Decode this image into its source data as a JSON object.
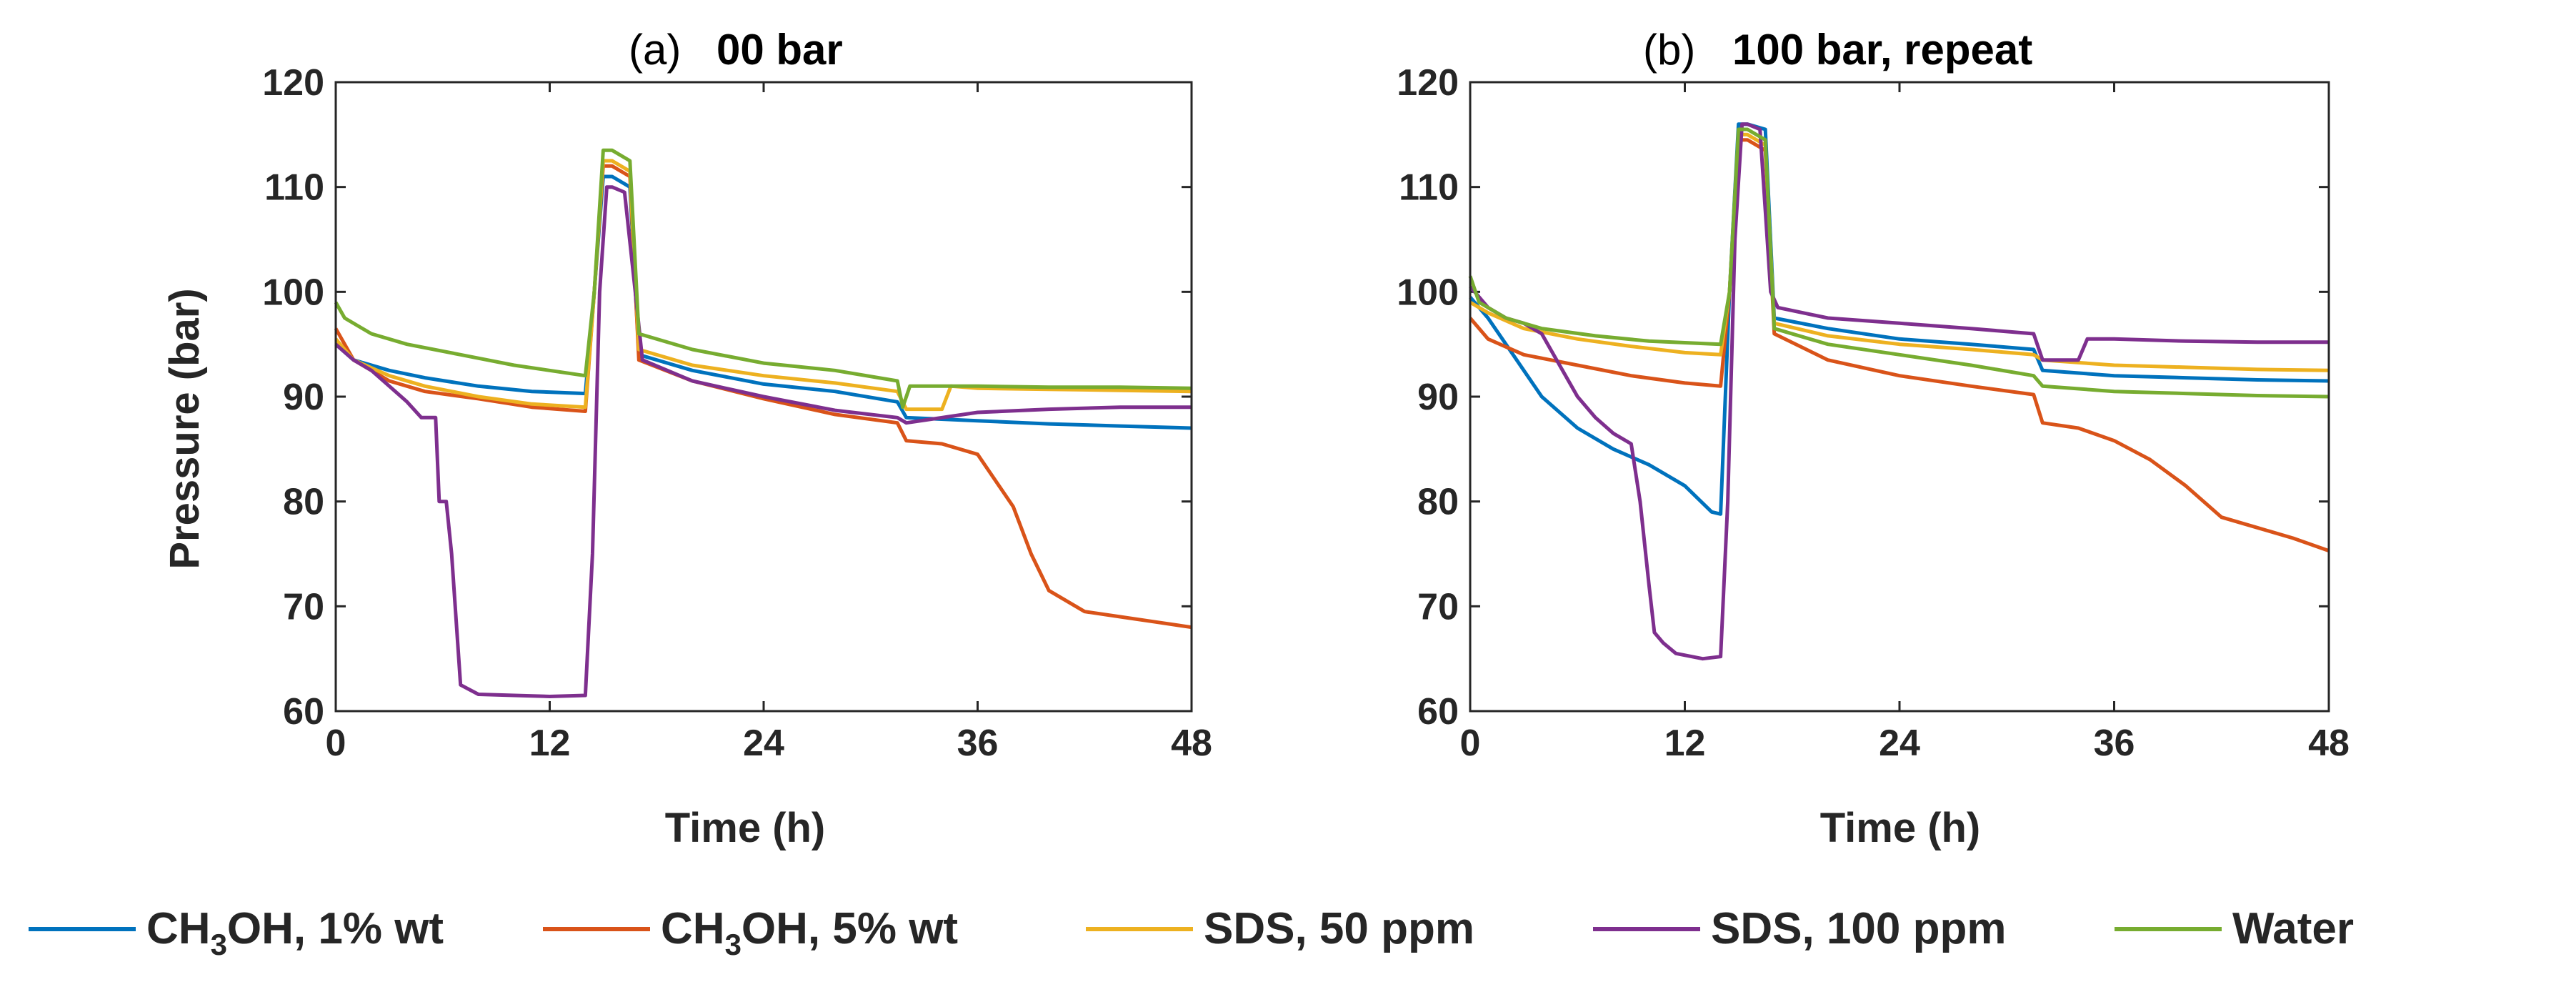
{
  "chart_data": [
    {
      "type": "line",
      "panel_label": "(a)",
      "title": "00 bar",
      "xlabel": "Time (h)",
      "ylabel": "Pressure (bar)",
      "xlim": [
        0,
        48
      ],
      "ylim": [
        60,
        120
      ],
      "xticks": [
        "0",
        "12",
        "24",
        "36",
        "48"
      ],
      "yticks": [
        "60",
        "70",
        "80",
        "90",
        "100",
        "110",
        "120"
      ],
      "grid": false,
      "series": [
        {
          "name": "CH3OH, 1% wt",
          "color": "#0072BD",
          "x": [
            0,
            1,
            3,
            5,
            8,
            11,
            14,
            14.5,
            15,
            15.5,
            16.5,
            17,
            20,
            24,
            28,
            31.5,
            32,
            36,
            40,
            44,
            48
          ],
          "y": [
            95,
            93.5,
            92.5,
            91.8,
            91,
            90.5,
            90.3,
            100,
            111,
            111,
            110,
            94,
            92.5,
            91.2,
            90.5,
            89.5,
            88,
            87.7,
            87.4,
            87.2,
            87
          ]
        },
        {
          "name": "CH3OH, 5% wt",
          "color": "#D95319",
          "x": [
            0,
            1,
            3,
            5,
            8,
            11,
            14,
            14.5,
            15,
            15.5,
            16.5,
            17,
            20,
            24,
            28,
            31.5,
            32,
            34,
            36,
            38,
            39,
            40,
            42,
            44,
            46,
            48
          ],
          "y": [
            96.5,
            93.5,
            91.5,
            90.5,
            89.8,
            89,
            88.6,
            100,
            112,
            112,
            111,
            93.5,
            91.5,
            89.8,
            88.3,
            87.5,
            85.8,
            85.5,
            84.5,
            79.5,
            75,
            71.5,
            69.5,
            69,
            68.5,
            68
          ]
        },
        {
          "name": "SDS, 50 ppm",
          "color": "#EDB120",
          "x": [
            0,
            1,
            3,
            5,
            8,
            11,
            14,
            14.5,
            15,
            15.5,
            16.5,
            17,
            20,
            24,
            28,
            31.5,
            32,
            34,
            34.5,
            36,
            40,
            44,
            48
          ],
          "y": [
            95.5,
            93.5,
            92,
            91,
            90,
            89.3,
            89,
            100,
            112.5,
            112.5,
            111.5,
            94.5,
            93,
            92,
            91.3,
            90.5,
            88.8,
            88.8,
            91,
            90.8,
            90.7,
            90.6,
            90.5
          ]
        },
        {
          "name": "SDS, 100 ppm",
          "color": "#7E2F8E",
          "x": [
            0,
            1,
            2,
            3,
            4,
            4.8,
            5,
            5.6,
            5.8,
            6.2,
            6.5,
            7,
            8,
            10,
            12,
            14,
            14.4,
            14.8,
            15.2,
            15.5,
            16.2,
            16.8,
            17.2,
            20,
            24,
            28,
            31.5,
            32,
            36,
            40,
            44,
            48
          ],
          "y": [
            95,
            93.5,
            92.5,
            91,
            89.5,
            88,
            88,
            88,
            80,
            80,
            75,
            62.5,
            61.6,
            61.5,
            61.4,
            61.5,
            75,
            100,
            110,
            110,
            109.5,
            100,
            93.5,
            91.5,
            90,
            88.7,
            88,
            87.5,
            88.5,
            88.8,
            89,
            89
          ]
        },
        {
          "name": "Water",
          "color": "#77AC30",
          "x": [
            0,
            0.5,
            2,
            4,
            7,
            10,
            14,
            14.5,
            15,
            15.5,
            16.5,
            17,
            20,
            24,
            28,
            31.5,
            31.8,
            32.2,
            36,
            40,
            44,
            48
          ],
          "y": [
            99,
            97.5,
            96,
            95,
            94,
            93,
            92,
            100,
            113.5,
            113.5,
            112.5,
            96,
            94.5,
            93.2,
            92.5,
            91.5,
            89,
            91,
            91,
            90.9,
            90.9,
            90.8
          ]
        }
      ]
    },
    {
      "type": "line",
      "panel_label": "(b)",
      "title": "100 bar, repeat",
      "xlabel": "Time (h)",
      "ylabel": "",
      "xlim": [
        0,
        48
      ],
      "ylim": [
        60,
        120
      ],
      "xticks": [
        "0",
        "12",
        "24",
        "36",
        "48"
      ],
      "yticks": [
        "60",
        "70",
        "80",
        "90",
        "100",
        "110",
        "120"
      ],
      "grid": false,
      "series": [
        {
          "name": "CH3OH, 1% wt",
          "color": "#0072BD",
          "x": [
            0,
            1,
            2,
            3,
            4,
            6,
            8,
            10,
            12,
            13.5,
            14,
            14.5,
            15,
            15.5,
            16.5,
            17,
            20,
            24,
            28,
            31.5,
            32,
            36,
            40,
            44,
            48
          ],
          "y": [
            99.5,
            97.5,
            95,
            92.5,
            90,
            87,
            85,
            83.5,
            81.5,
            79,
            78.8,
            100,
            116,
            116,
            115.5,
            97.5,
            96.5,
            95.5,
            95,
            94.5,
            92.5,
            92,
            91.8,
            91.6,
            91.5
          ]
        },
        {
          "name": "CH3OH, 5% wt",
          "color": "#D95319",
          "x": [
            0,
            1,
            3,
            6,
            9,
            12,
            14,
            14.5,
            15,
            15.5,
            16.5,
            17,
            20,
            24,
            28,
            31.5,
            32,
            34,
            36,
            38,
            40,
            42,
            44,
            46,
            48
          ],
          "y": [
            97.5,
            95.5,
            94,
            93,
            92,
            91.3,
            91,
            100,
            114.5,
            114.5,
            113.5,
            96,
            93.5,
            92,
            91,
            90.2,
            87.5,
            87,
            85.8,
            84,
            81.5,
            78.5,
            77.5,
            76.5,
            75.3
          ]
        },
        {
          "name": "SDS, 50 ppm",
          "color": "#EDB120",
          "x": [
            0,
            1,
            3,
            6,
            9,
            12,
            14,
            14.5,
            15,
            15.5,
            16.5,
            17,
            20,
            24,
            28,
            31.5,
            32,
            36,
            40,
            44,
            48
          ],
          "y": [
            99,
            98,
            96.5,
            95.5,
            94.8,
            94.2,
            94,
            100,
            115,
            115,
            114,
            97,
            95.8,
            95,
            94.5,
            94,
            93.5,
            93,
            92.8,
            92.6,
            92.5
          ]
        },
        {
          "name": "SDS, 100 ppm",
          "color": "#7E2F8E",
          "x": [
            0,
            1,
            2,
            3,
            4,
            5,
            6,
            7,
            8,
            9,
            9.5,
            10,
            10.3,
            10.8,
            11.5,
            13,
            14,
            14.4,
            14.8,
            15.2,
            15.5,
            16.2,
            16.8,
            17.2,
            20,
            24,
            28,
            31.5,
            32,
            34,
            34.5,
            36,
            40,
            44,
            48
          ],
          "y": [
            100.5,
            98.5,
            97.5,
            97,
            96,
            93,
            90,
            88,
            86.5,
            85.5,
            80,
            72,
            67.5,
            66.5,
            65.5,
            65,
            65.2,
            80,
            105,
            116,
            116,
            115.5,
            100,
            98.5,
            97.5,
            97,
            96.5,
            96,
            93.5,
            93.5,
            95.5,
            95.5,
            95.3,
            95.2,
            95.2
          ]
        },
        {
          "name": "Water",
          "color": "#77AC30",
          "x": [
            0,
            0.5,
            2,
            4,
            7,
            10,
            14,
            14.5,
            15,
            15.5,
            16.5,
            17,
            20,
            24,
            28,
            31.5,
            32,
            36,
            40,
            44,
            48
          ],
          "y": [
            101.5,
            99,
            97.5,
            96.5,
            95.8,
            95.3,
            95,
            100,
            115.5,
            115.5,
            114.5,
            96.5,
            95,
            94,
            93,
            92,
            91,
            90.5,
            90.3,
            90.1,
            90
          ]
        }
      ]
    }
  ],
  "legend": {
    "placement": "bottom",
    "items": [
      {
        "label_main": "CH",
        "label_sub": "3",
        "label_rest": "OH, 1% wt",
        "color": "#0072BD"
      },
      {
        "label_main": "CH",
        "label_sub": "3",
        "label_rest": "OH, 5% wt",
        "color": "#D95319"
      },
      {
        "label_main": "SDS, 50 ppm",
        "label_sub": "",
        "label_rest": "",
        "color": "#EDB120"
      },
      {
        "label_main": "SDS, 100 ppm",
        "label_sub": "",
        "label_rest": "",
        "color": "#7E2F8E"
      },
      {
        "label_main": "Water",
        "label_sub": "",
        "label_rest": "",
        "color": "#77AC30"
      }
    ]
  }
}
